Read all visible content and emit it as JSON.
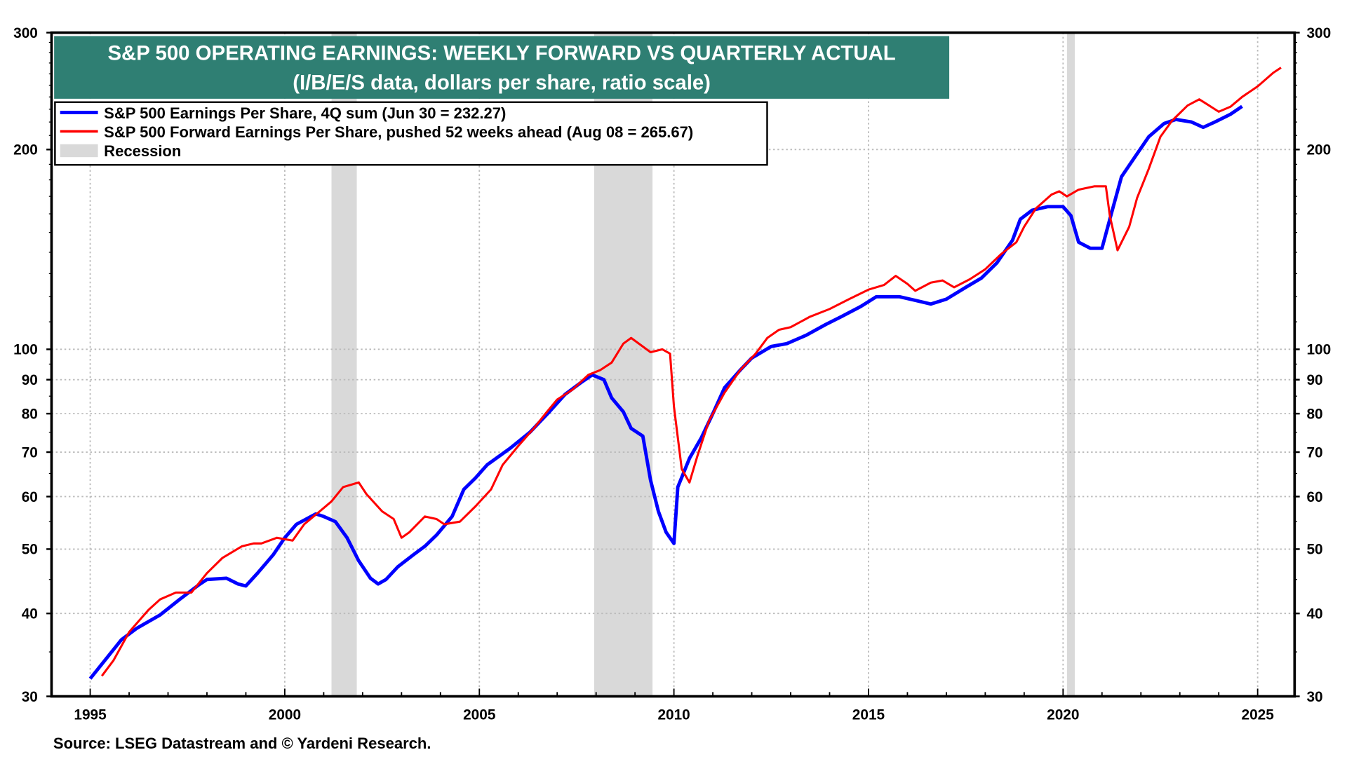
{
  "chart_data": {
    "type": "line",
    "title": "S&P 500 OPERATING EARNINGS: WEEKLY FORWARD VS QUARTERLY ACTUAL",
    "subtitle": "(I/B/E/S data, dollars per share, ratio scale)",
    "xlabel": "",
    "ylabel": "",
    "yscale": "log",
    "ylim": [
      30,
      300
    ],
    "xlim": [
      1993.8,
      2026.0
    ],
    "y_ticks": [
      30,
      40,
      50,
      60,
      70,
      80,
      90,
      100,
      200,
      300
    ],
    "x_ticks": [
      1995,
      2000,
      2005,
      2010,
      2015,
      2020,
      2025
    ],
    "grid": true,
    "legend_position": "top-left",
    "legend": [
      {
        "label": "S&P 500 Earnings Per Share, 4Q sum (Jun 30 = 232.27)",
        "color": "#0000ff"
      },
      {
        "label": "S&P 500 Forward Earnings Per Share, pushed 52 weeks ahead (Aug 08 = 265.67)",
        "color": "#ff0000"
      },
      {
        "label": "Recession",
        "color": "#d9d9d9"
      }
    ],
    "recessions": [
      [
        2001.2,
        2001.85
      ],
      [
        2007.95,
        2009.45
      ],
      [
        2020.1,
        2020.3
      ]
    ],
    "series": [
      {
        "name": "S&P 500 Earnings Per Share, 4Q sum",
        "color": "#0000ff",
        "x": [
          1995.0,
          1995.8,
          1996.2,
          1996.8,
          1997.3,
          1997.8,
          1998.0,
          1998.5,
          1998.8,
          1999.0,
          1999.3,
          1999.7,
          2000.0,
          2000.3,
          2000.8,
          2001.0,
          2001.3,
          2001.6,
          2001.9,
          2002.2,
          2002.4,
          2002.6,
          2002.9,
          2003.3,
          2003.6,
          2003.9,
          2004.3,
          2004.6,
          2004.9,
          2005.2,
          2005.8,
          2006.3,
          2006.8,
          2007.2,
          2007.6,
          2007.9,
          2008.2,
          2008.4,
          2008.7,
          2008.9,
          2009.2,
          2009.4,
          2009.6,
          2009.8,
          2010.0,
          2010.1,
          2010.4,
          2010.7,
          2011.0,
          2011.3,
          2011.7,
          2012.0,
          2012.5,
          2012.9,
          2013.4,
          2013.9,
          2014.3,
          2014.8,
          2015.2,
          2015.8,
          2016.2,
          2016.6,
          2017.0,
          2017.5,
          2017.9,
          2018.3,
          2018.7,
          2018.9,
          2019.2,
          2019.6,
          2020.0,
          2020.2,
          2020.4,
          2020.7,
          2021.0,
          2021.2,
          2021.5,
          2021.9,
          2022.2,
          2022.6,
          2022.9,
          2023.3,
          2023.6,
          2023.9,
          2024.3,
          2024.6
        ],
        "values": [
          31.9,
          36.5,
          38,
          39.8,
          42,
          44.2,
          45,
          45.2,
          44.3,
          44,
          46,
          49,
          52,
          54.5,
          56.5,
          56,
          55,
          52,
          48,
          45.2,
          44.3,
          45,
          47,
          49,
          50.5,
          52.5,
          56,
          61.5,
          64,
          67,
          71,
          75,
          80.5,
          85.5,
          89,
          91.5,
          90,
          84.5,
          80.5,
          76,
          74,
          63.5,
          57,
          53,
          51,
          62,
          68.5,
          73.5,
          80,
          87.5,
          93,
          97,
          101,
          102,
          105,
          109,
          112,
          116,
          120,
          120,
          118.5,
          117,
          119,
          124,
          128,
          135,
          146,
          157,
          162,
          164,
          164,
          159,
          145,
          142,
          142,
          157,
          182,
          197,
          209,
          219,
          222,
          220,
          216,
          220,
          226,
          232.27
        ]
      },
      {
        "name": "S&P 500 Forward Earnings Per Share, pushed 52 weeks ahead",
        "color": "#ff0000",
        "x": [
          1995.3,
          1995.6,
          1996.0,
          1996.5,
          1996.8,
          1997.2,
          1997.6,
          1998.0,
          1998.4,
          1998.9,
          1999.2,
          1999.4,
          1999.8,
          2000.2,
          2000.5,
          2000.9,
          2001.2,
          2001.5,
          2001.9,
          2002.1,
          2002.5,
          2002.8,
          2003.0,
          2003.2,
          2003.6,
          2003.9,
          2004.1,
          2004.5,
          2004.9,
          2005.3,
          2005.6,
          2006.0,
          2006.4,
          2006.7,
          2007.0,
          2007.4,
          2007.8,
          2008.1,
          2008.4,
          2008.7,
          2008.9,
          2009.1,
          2009.4,
          2009.7,
          2009.9,
          2010.0,
          2010.2,
          2010.4,
          2010.6,
          2010.9,
          2011.3,
          2011.7,
          2012.1,
          2012.4,
          2012.7,
          2013.0,
          2013.5,
          2014.0,
          2014.5,
          2015.0,
          2015.4,
          2015.7,
          2016.0,
          2016.2,
          2016.6,
          2016.9,
          2017.2,
          2017.6,
          2018.0,
          2018.4,
          2018.8,
          2019.0,
          2019.3,
          2019.7,
          2019.9,
          2020.1,
          2020.4,
          2020.8,
          2021.1,
          2021.2,
          2021.4,
          2021.7,
          2021.9,
          2022.2,
          2022.5,
          2022.8,
          2023.2,
          2023.5,
          2023.7,
          2024.0,
          2024.3,
          2024.6,
          2025.0,
          2025.4,
          2025.6
        ],
        "values": [
          32.2,
          34,
          37.5,
          40.5,
          42,
          43,
          43,
          46,
          48.5,
          50.5,
          51,
          51,
          52,
          51.5,
          54.5,
          57,
          59,
          62,
          63,
          60.5,
          57,
          55.5,
          52,
          53,
          56,
          55.5,
          54.5,
          55,
          58,
          61.5,
          67,
          71.5,
          76,
          80,
          84,
          87,
          91.5,
          93,
          95.5,
          102,
          104,
          102,
          99,
          100,
          98.5,
          82,
          66,
          63,
          69,
          78,
          86,
          93,
          98.5,
          104,
          107,
          108,
          112,
          115,
          119,
          123,
          125,
          129,
          125.5,
          122.5,
          126,
          127,
          124,
          127.5,
          132,
          139,
          145,
          153,
          163,
          171,
          173,
          170,
          174,
          176,
          176,
          159,
          141,
          153,
          169,
          187,
          209,
          221,
          233,
          238,
          234,
          228,
          232,
          240,
          249,
          261,
          265.67
        ]
      }
    ]
  },
  "source": "Source: LSEG Datastream and © Yardeni Research."
}
